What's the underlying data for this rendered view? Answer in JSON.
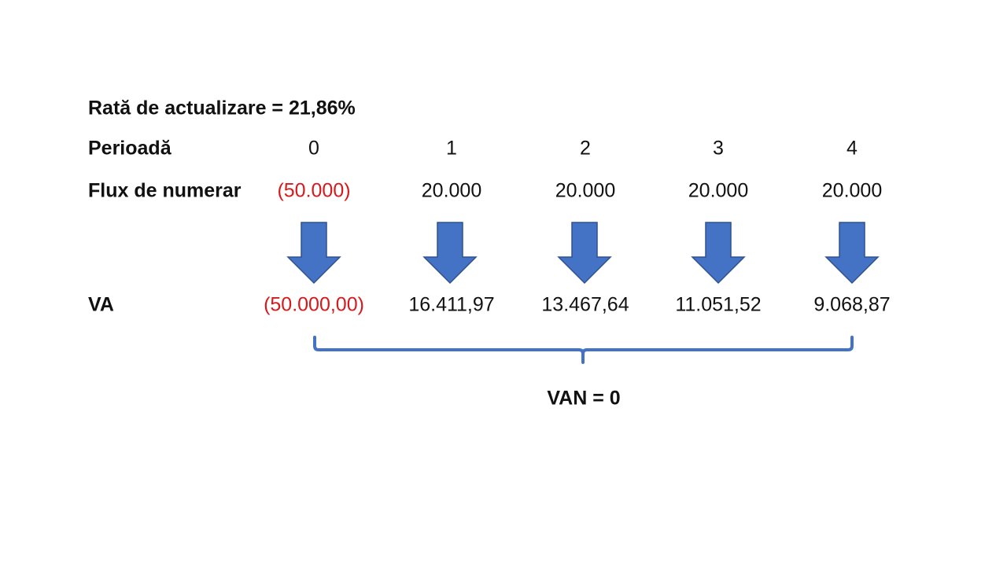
{
  "rate_label": "Rată de actualizare = 21,86%",
  "rows": {
    "period": {
      "label": "Perioadă",
      "cells": [
        "0",
        "1",
        "2",
        "3",
        "4"
      ]
    },
    "cash_flow": {
      "label": "Flux de numerar",
      "cells": [
        "(50.000)",
        "20.000",
        "20.000",
        "20.000",
        "20.000"
      ]
    },
    "present_value": {
      "label": "VA",
      "cells": [
        "(50.000,00)",
        "16.411,97",
        "13.467,64",
        "11.051,52",
        "9.068,87"
      ]
    }
  },
  "npv_label": "VAN = 0"
}
